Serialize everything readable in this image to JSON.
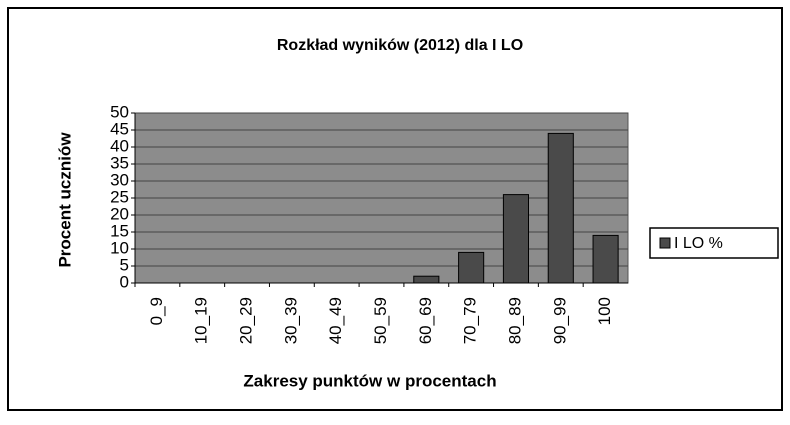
{
  "chart_data": {
    "type": "bar",
    "title": "Rozkład wyników (2012) dla I LO",
    "y_label": "Procent uczniów",
    "x_label": "Zakresy punktów w procentach",
    "categories": [
      "0_9",
      "10_19",
      "20_29",
      "30_39",
      "40_49",
      "50_59",
      "60_69",
      "70_79",
      "80_89",
      "90_99",
      "100"
    ],
    "series": [
      {
        "name": "I LO %",
        "color": "#4a4a4a",
        "values": [
          0,
          0,
          0,
          0,
          0,
          0,
          2,
          9,
          26,
          44,
          14
        ]
      }
    ],
    "ylim": [
      0,
      50
    ],
    "yticks": [
      0,
      5,
      10,
      15,
      20,
      25,
      30,
      35,
      40,
      45,
      50
    ],
    "grid": true,
    "legend": "right"
  }
}
